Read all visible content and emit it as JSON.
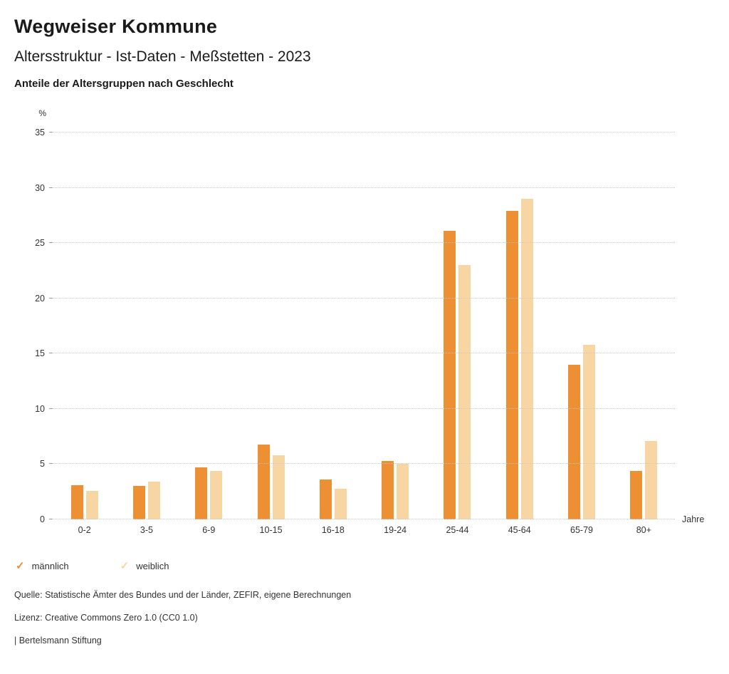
{
  "header": {
    "title": "Wegweiser Kommune",
    "subtitle": "Altersstruktur - Ist-Daten - Meßstetten - 2023",
    "chart_heading": "Anteile der Altersgruppen nach Geschlecht"
  },
  "chart_data": {
    "type": "bar",
    "title": "Anteile der Altersgruppen nach Geschlecht",
    "unit_label": "%",
    "x_unit_label": "Jahre",
    "categories": [
      "0-2",
      "3-5",
      "6-9",
      "10-15",
      "16-18",
      "19-24",
      "25-44",
      "45-64",
      "65-79",
      "80+"
    ],
    "series": [
      {
        "name": "männlich",
        "color": "#ED8F33",
        "values": [
          3.1,
          3.0,
          4.7,
          6.8,
          3.6,
          5.3,
          26.1,
          27.9,
          14.0,
          4.4
        ]
      },
      {
        "name": "weiblich",
        "color": "#F8D6A4",
        "values": [
          2.6,
          3.4,
          4.4,
          5.8,
          2.8,
          5.0,
          23.0,
          29.0,
          15.8,
          7.1
        ]
      }
    ],
    "ylim": [
      0,
      35
    ],
    "yticks": [
      0,
      5,
      10,
      15,
      20,
      25,
      30,
      35
    ],
    "grid": true,
    "legend_position": "bottom"
  },
  "legend": {
    "items": [
      {
        "label": "männlich",
        "color": "#ED8F33",
        "check_icon": "✓"
      },
      {
        "label": "weiblich",
        "color": "#F8D6A4",
        "check_icon": "✓"
      }
    ]
  },
  "footer": {
    "source": "Quelle: Statistische Ämter des Bundes und der Länder, ZEFIR, eigene Berechnungen",
    "license": "Lizenz: Creative Commons Zero 1.0 (CC0 1.0)",
    "attribution": "| Bertelsmann Stiftung"
  }
}
